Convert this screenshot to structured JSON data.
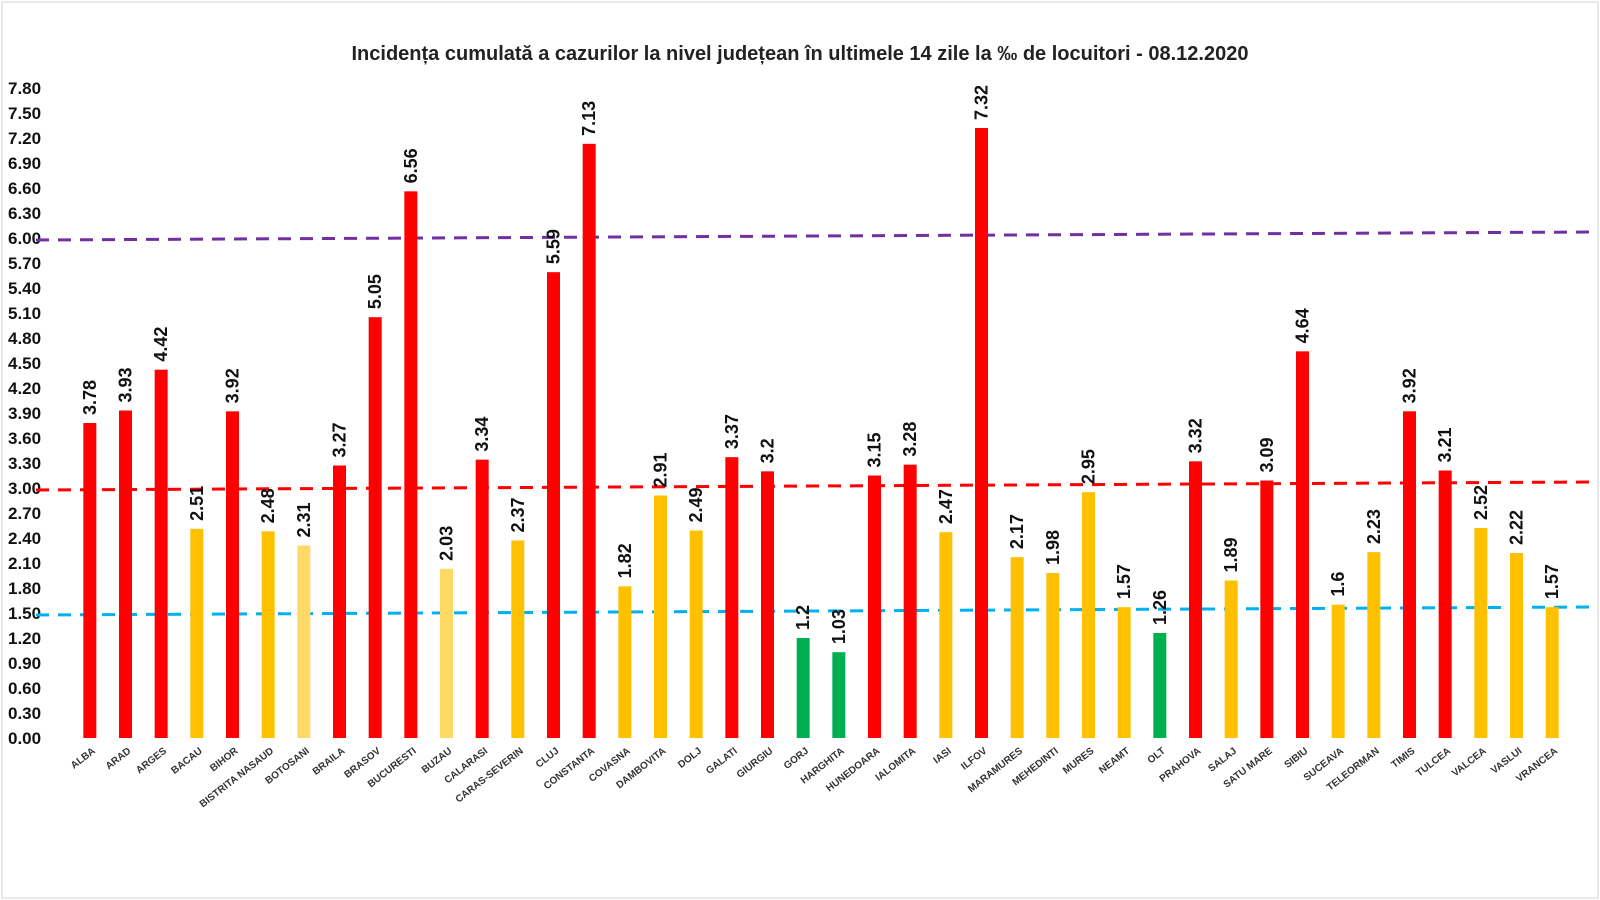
{
  "chart_data": {
    "type": "bar",
    "title": "Incidența cumulată a cazurilor la nivel județean în ultimele 14 zile la ‰ de locuitori - 08.12.2020",
    "xlabel": "",
    "ylabel": "",
    "ylim": [
      0,
      7.8
    ],
    "yticks": [
      "0.00",
      "0.30",
      "0.60",
      "0.90",
      "1.20",
      "1.50",
      "1.80",
      "2.10",
      "2.40",
      "2.70",
      "3.00",
      "3.30",
      "3.60",
      "3.90",
      "4.20",
      "4.50",
      "4.80",
      "5.10",
      "5.40",
      "5.70",
      "6.00",
      "6.30",
      "6.60",
      "6.90",
      "7.20",
      "7.50",
      "7.80"
    ],
    "grid": false,
    "categories": [
      "ALBA",
      "ARAD",
      "ARGES",
      "BACAU",
      "BIHOR",
      "BISTRITA NASAUD",
      "BOTOSANI",
      "BRAILA",
      "BRASOV",
      "BUCURESTI",
      "BUZAU",
      "CALARASI",
      "CARAS-SEVERIN",
      "CLUJ",
      "CONSTANTA",
      "COVASNA",
      "DAMBOVITA",
      "DOLJ",
      "GALATI",
      "GIURGIU",
      "GORJ",
      "HARGHITA",
      "HUNEDOARA",
      "IALOMITA",
      "IASI",
      "ILFOV",
      "MARAMURES",
      "MEHEDINTI",
      "MURES",
      "NEAMT",
      "OLT",
      "PRAHOVA",
      "SALAJ",
      "SATU MARE",
      "SIBIU",
      "SUCEAVA",
      "TELEORMAN",
      "TIMIS",
      "TULCEA",
      "VALCEA",
      "VASLUI",
      "VRANCEA"
    ],
    "values": [
      3.78,
      3.93,
      4.42,
      2.51,
      3.92,
      2.48,
      2.31,
      3.27,
      5.05,
      6.56,
      2.03,
      3.34,
      2.37,
      5.59,
      7.13,
      1.82,
      2.91,
      2.49,
      3.37,
      3.2,
      1.2,
      1.03,
      3.15,
      3.28,
      2.47,
      7.32,
      2.17,
      1.98,
      2.95,
      1.57,
      1.26,
      3.32,
      1.89,
      3.09,
      4.64,
      1.6,
      2.23,
      3.92,
      3.21,
      2.52,
      2.22,
      1.57
    ],
    "value_labels": [
      "3.78",
      "3.93",
      "4.42",
      "2.51",
      "3.92",
      "2.48",
      "2.31",
      "3.27",
      "5.05",
      "6.56",
      "2.03",
      "3.34",
      "2.37",
      "5.59",
      "7.13",
      "1.82",
      "2.91",
      "2.49",
      "3.37",
      "3.2",
      "1.2",
      "1.03",
      "3.15",
      "3.28",
      "2.47",
      "7.32",
      "2.17",
      "1.98",
      "2.95",
      "1.57",
      "1.26",
      "3.32",
      "1.89",
      "3.09",
      "4.64",
      "1.6",
      "2.23",
      "3.92",
      "3.21",
      "2.52",
      "2.22",
      "1.57"
    ],
    "bar_colors": [
      "#ff0000",
      "#ff0000",
      "#ff0000",
      "#ffc000",
      "#ff0000",
      "#ffc000",
      "#ffd966",
      "#ff0000",
      "#ff0000",
      "#ff0000",
      "#ffd966",
      "#ff0000",
      "#ffc000",
      "#ff0000",
      "#ff0000",
      "#ffc000",
      "#ffc000",
      "#ffc000",
      "#ff0000",
      "#ff0000",
      "#00b050",
      "#00b050",
      "#ff0000",
      "#ff0000",
      "#ffc000",
      "#ff0000",
      "#ffc000",
      "#ffc000",
      "#ffc000",
      "#ffc000",
      "#00b050",
      "#ff0000",
      "#ffc000",
      "#ff0000",
      "#ff0000",
      "#ffc000",
      "#ffc000",
      "#ff0000",
      "#ff0000",
      "#ffc000",
      "#ffc000",
      "#ffc000"
    ],
    "reference_lines": [
      {
        "value": 6.0,
        "color": "#7030a0",
        "style": "dashed"
      },
      {
        "value": 3.0,
        "color": "#ff0000",
        "style": "dashed"
      },
      {
        "value": 1.5,
        "color": "#00b0f0",
        "style": "dashed"
      }
    ]
  }
}
